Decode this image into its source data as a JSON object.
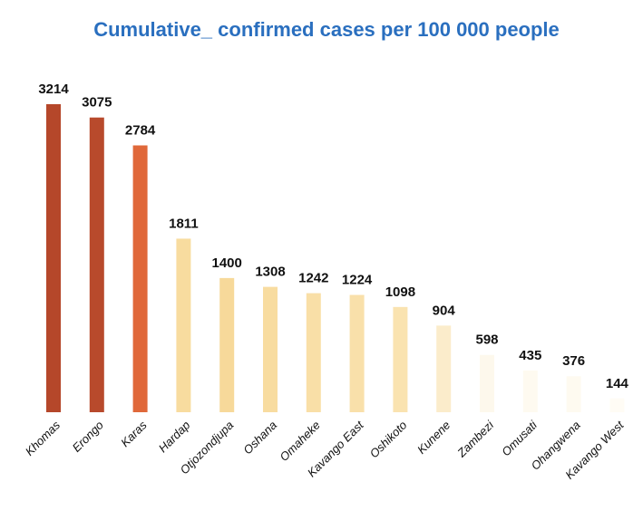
{
  "chart_data": {
    "type": "bar",
    "title": "Cumulative_ confirmed cases per 100 000 people",
    "categories": [
      "Khomas",
      "Erongo",
      "Karas",
      "Hardap",
      "Otjozondjupa",
      "Oshana",
      "Omaheke",
      "Kavango East",
      "Oshikoto",
      "Kunene",
      "Zambezi",
      "Omusati",
      "Ohangwena",
      "Kavango West"
    ],
    "values": [
      3214,
      3075,
      2784,
      1811,
      1400,
      1308,
      1242,
      1224,
      1098,
      904,
      598,
      435,
      376,
      144
    ],
    "colors": [
      "#b5472a",
      "#b84a2c",
      "#e0683a",
      "#f8dc9f",
      "#f7d99a",
      "#f8dca0",
      "#f9dfa7",
      "#f9e0aa",
      "#fae3b0",
      "#fbeccb",
      "#fdf8ec",
      "#fefaf0",
      "#fefaf0",
      "#fffcf5"
    ]
  }
}
